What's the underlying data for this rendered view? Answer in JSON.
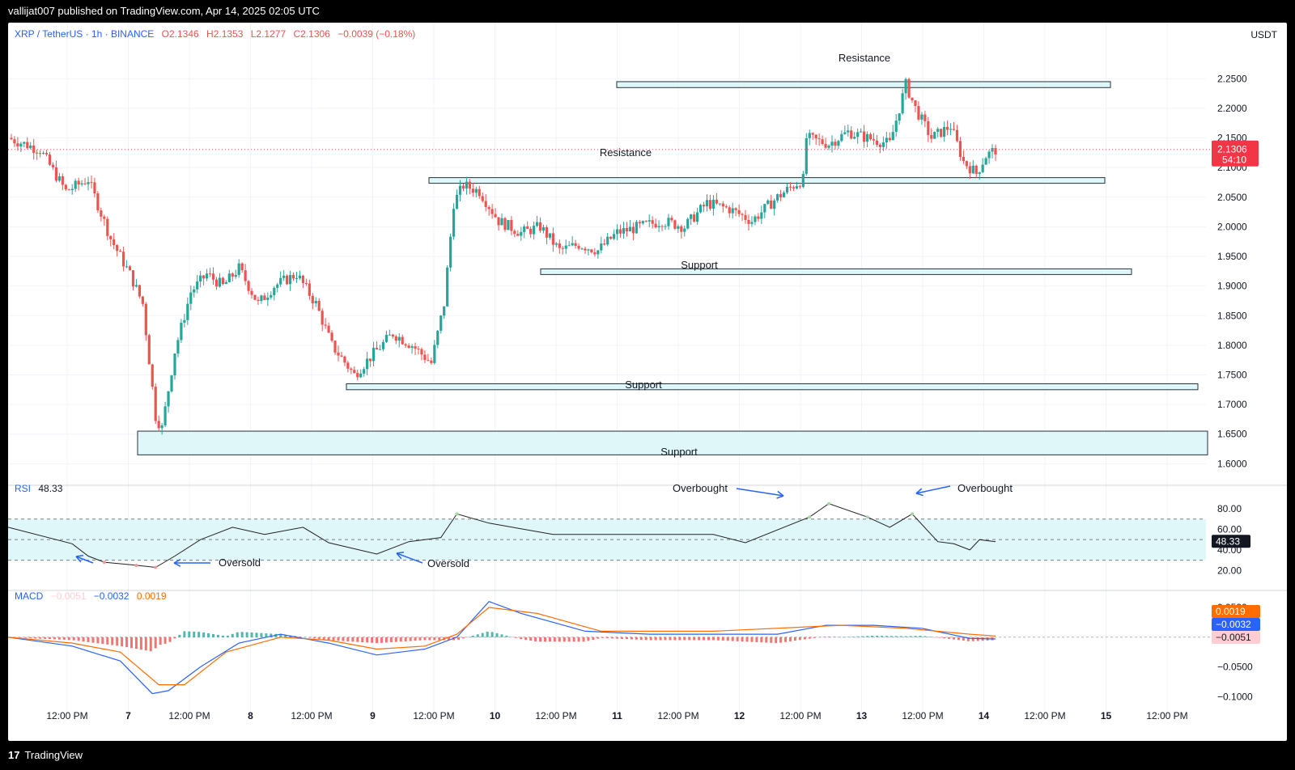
{
  "header": {
    "published": "vallijat007 published on TradingView.com, Apr 14, 2025 02:05 UTC"
  },
  "footer": {
    "logo_text": "TradingView",
    "logo_mark": "17"
  },
  "colors": {
    "up": "#26a69a",
    "down": "#ef5350",
    "zone_fill": "#e0f7fa",
    "zone_stroke": "#263238",
    "rsi_line": "#212121",
    "rsi_band": "#e0f7fa",
    "macd_line": "#2962ff",
    "signal_line": "#ff6d00",
    "arrow": "#2962ff",
    "last_price_bg": "#f23645"
  },
  "symbol_legend": {
    "pair": "XRP / TetherUS · 1h · BINANCE",
    "open": "O2.1346",
    "high": "H2.1353",
    "low": "L2.1277",
    "close": "C2.1306",
    "change": "−0.0039 (−0.18%)"
  },
  "currency_label": "USDT",
  "last_price": {
    "value": "2.1306",
    "countdown": "54:10"
  },
  "rsi_panel": {
    "label": "RSI",
    "value": "48.33",
    "badge": "48.33",
    "axis_ticks": [
      "80.00",
      "60.00",
      "40.00",
      "20.00"
    ]
  },
  "macd_panel": {
    "label": "MACD",
    "hist_value": "−0.0051",
    "macd_value": "−0.0032",
    "signal_value": "0.0019",
    "badges": [
      "0.0019",
      "−0.0032",
      "−0.0051"
    ],
    "axis_ticks": [
      "0.0500",
      "0.0000",
      "−0.0500",
      "−0.1000"
    ]
  },
  "annotations": {
    "resistance_upper": "Resistance",
    "resistance_mid": "Resistance",
    "support_upper": "Support",
    "support_mid": "Support",
    "support_lower": "Support",
    "overbought_1": "Overbought",
    "overbought_2": "Overbought",
    "oversold_1": "Oversold",
    "oversold_2": "Oversold"
  },
  "chart_data": {
    "type": "candlestick",
    "title": "XRP / TetherUS · 1h · BINANCE",
    "ylabel": "USDT",
    "ylim": [
      1.58,
      2.29
    ],
    "y_ticks": [
      "2.2500",
      "2.2000",
      "2.1500",
      "2.1000",
      "2.0500",
      "2.0000",
      "1.9500",
      "1.9000",
      "1.8500",
      "1.8000",
      "1.7500",
      "1.7000",
      "1.6500",
      "1.6000"
    ],
    "x_ticks": [
      "12:00 PM",
      "7",
      "12:00 PM",
      "8",
      "12:00 PM",
      "9",
      "12:00 PM",
      "10",
      "12:00 PM",
      "11",
      "12:00 PM",
      "12",
      "12:00 PM",
      "13",
      "12:00 PM",
      "14",
      "12:00 PM",
      "15",
      "12:00 PM"
    ],
    "grid": true,
    "close_path": [
      [
        0,
        2.15
      ],
      [
        10,
        2.13
      ],
      [
        18,
        2.06
      ],
      [
        25,
        2.08
      ],
      [
        32,
        1.98
      ],
      [
        38,
        1.92
      ],
      [
        42,
        1.87
      ],
      [
        46,
        1.68
      ],
      [
        48,
        1.66
      ],
      [
        52,
        1.79
      ],
      [
        57,
        1.89
      ],
      [
        62,
        1.92
      ],
      [
        67,
        1.9
      ],
      [
        72,
        1.93
      ],
      [
        78,
        1.87
      ],
      [
        83,
        1.9
      ],
      [
        90,
        1.92
      ],
      [
        96,
        1.87
      ],
      [
        101,
        1.8
      ],
      [
        108,
        1.75
      ],
      [
        113,
        1.78
      ],
      [
        120,
        1.82
      ],
      [
        126,
        1.8
      ],
      [
        132,
        1.77
      ],
      [
        136,
        1.87
      ],
      [
        139,
        2.04
      ],
      [
        142,
        2.07
      ],
      [
        147,
        2.06
      ],
      [
        153,
        2.01
      ],
      [
        160,
        1.99
      ],
      [
        166,
        2.0
      ],
      [
        172,
        1.96
      ],
      [
        178,
        1.97
      ],
      [
        184,
        1.96
      ],
      [
        190,
        1.99
      ],
      [
        197,
        2.0
      ],
      [
        204,
        2.01
      ],
      [
        211,
        2.0
      ],
      [
        218,
        2.04
      ],
      [
        225,
        2.03
      ],
      [
        232,
        2.01
      ],
      [
        240,
        2.05
      ],
      [
        245,
        2.07
      ],
      [
        248,
        2.08
      ],
      [
        249,
        2.15
      ],
      [
        256,
        2.14
      ],
      [
        262,
        2.16
      ],
      [
        268,
        2.15
      ],
      [
        275,
        2.14
      ],
      [
        280,
        2.24
      ],
      [
        283,
        2.2
      ],
      [
        288,
        2.15
      ],
      [
        294,
        2.17
      ],
      [
        298,
        2.11
      ],
      [
        302,
        2.09
      ],
      [
        305,
        2.12
      ],
      [
        308,
        2.13
      ]
    ],
    "resistance_zones": [
      [
        2.235,
        2.245
      ],
      [
        2.075,
        2.083
      ]
    ],
    "support_zones": [
      [
        1.924,
        1.929
      ],
      [
        1.725,
        1.735
      ],
      [
        1.615,
        1.655
      ]
    ],
    "last_close": 2.1306,
    "rsi": {
      "ylim": [
        10,
        95
      ],
      "bands": [
        30,
        70,
        50
      ],
      "points": [
        [
          0,
          62
        ],
        [
          20,
          46
        ],
        [
          25,
          34
        ],
        [
          30,
          28
        ],
        [
          40,
          25
        ],
        [
          46,
          23
        ],
        [
          52,
          34
        ],
        [
          60,
          50
        ],
        [
          70,
          62
        ],
        [
          80,
          55
        ],
        [
          92,
          62
        ],
        [
          100,
          47
        ],
        [
          115,
          36
        ],
        [
          125,
          48
        ],
        [
          135,
          52
        ],
        [
          140,
          75
        ],
        [
          150,
          66
        ],
        [
          170,
          55
        ],
        [
          200,
          55
        ],
        [
          220,
          55
        ],
        [
          230,
          47
        ],
        [
          250,
          72
        ],
        [
          256,
          85
        ],
        [
          268,
          72
        ],
        [
          275,
          62
        ],
        [
          282,
          75
        ],
        [
          290,
          48
        ],
        [
          295,
          46
        ],
        [
          300,
          40
        ],
        [
          303,
          50
        ],
        [
          308,
          48
        ]
      ]
    },
    "macd": {
      "ylim": [
        -0.12,
        0.065
      ],
      "macd_points": [
        [
          0,
          0.0
        ],
        [
          20,
          -0.015
        ],
        [
          35,
          -0.04
        ],
        [
          45,
          -0.095
        ],
        [
          50,
          -0.09
        ],
        [
          60,
          -0.05
        ],
        [
          72,
          -0.01
        ],
        [
          85,
          0.005
        ],
        [
          100,
          -0.01
        ],
        [
          115,
          -0.03
        ],
        [
          130,
          -0.02
        ],
        [
          140,
          0.0
        ],
        [
          150,
          0.06
        ],
        [
          160,
          0.04
        ],
        [
          180,
          0.01
        ],
        [
          200,
          0.005
        ],
        [
          220,
          0.005
        ],
        [
          240,
          0.005
        ],
        [
          255,
          0.02
        ],
        [
          270,
          0.02
        ],
        [
          285,
          0.015
        ],
        [
          300,
          -0.002
        ],
        [
          308,
          -0.003
        ]
      ],
      "signal_points": [
        [
          0,
          0.0
        ],
        [
          20,
          -0.01
        ],
        [
          35,
          -0.025
        ],
        [
          47,
          -0.08
        ],
        [
          55,
          -0.08
        ],
        [
          68,
          -0.025
        ],
        [
          85,
          0.0
        ],
        [
          100,
          -0.005
        ],
        [
          115,
          -0.02
        ],
        [
          130,
          -0.015
        ],
        [
          140,
          0.005
        ],
        [
          150,
          0.05
        ],
        [
          165,
          0.04
        ],
        [
          185,
          0.01
        ],
        [
          220,
          0.01
        ],
        [
          260,
          0.02
        ],
        [
          280,
          0.015
        ],
        [
          300,
          0.005
        ],
        [
          308,
          0.002
        ]
      ]
    }
  }
}
